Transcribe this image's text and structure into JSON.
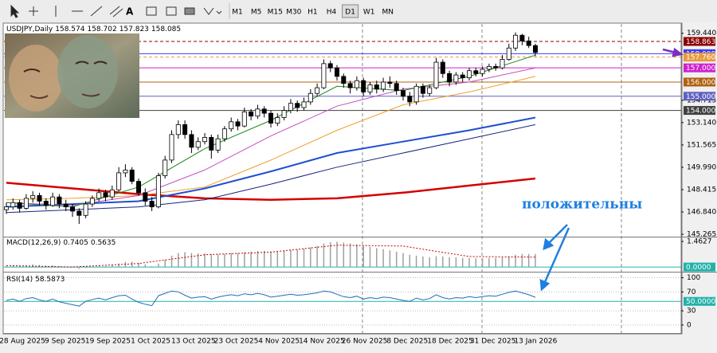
{
  "toolbar": {
    "timeframes": [
      "M1",
      "M5",
      "M15",
      "M30",
      "H1",
      "H4",
      "D1",
      "W1",
      "MN"
    ],
    "selected": 6
  },
  "chart_data": [
    {
      "type": "candlestick",
      "title": "USDJPY,Daily",
      "ohlc": [
        [
          147.0,
          147.5,
          146.7,
          147.2
        ],
        [
          147.2,
          147.8,
          147.0,
          147.5
        ],
        [
          147.5,
          147.7,
          146.8,
          147.1
        ],
        [
          147.1,
          148.1,
          147.0,
          147.8
        ],
        [
          147.8,
          148.3,
          147.5,
          148.0
        ],
        [
          148.0,
          148.2,
          147.3,
          147.6
        ],
        [
          147.6,
          147.8,
          147.0,
          147.3
        ],
        [
          147.3,
          148.2,
          147.2,
          147.9
        ],
        [
          147.9,
          148.1,
          147.1,
          147.4
        ],
        [
          147.4,
          147.7,
          146.9,
          147.2
        ],
        [
          147.2,
          147.4,
          146.5,
          146.9
        ],
        [
          146.9,
          147.1,
          146.0,
          146.6
        ],
        [
          146.6,
          147.6,
          146.4,
          147.4
        ],
        [
          147.4,
          148.0,
          147.2,
          147.8
        ],
        [
          147.8,
          148.5,
          147.6,
          148.2
        ],
        [
          148.2,
          148.4,
          147.6,
          147.9
        ],
        [
          147.9,
          148.7,
          147.7,
          148.4
        ],
        [
          148.4,
          150.0,
          148.3,
          149.6
        ],
        [
          149.6,
          150.2,
          149.3,
          149.8
        ],
        [
          149.8,
          150.0,
          148.8,
          149.0
        ],
        [
          149.0,
          149.2,
          148.0,
          148.2
        ],
        [
          148.2,
          148.5,
          147.3,
          147.6
        ],
        [
          147.6,
          147.9,
          146.9,
          147.2
        ],
        [
          147.2,
          149.6,
          147.1,
          149.4
        ],
        [
          149.4,
          150.8,
          149.2,
          150.5
        ],
        [
          150.5,
          152.6,
          150.3,
          152.3
        ],
        [
          152.3,
          153.3,
          152.0,
          153.0
        ],
        [
          153.0,
          153.3,
          152.0,
          152.3
        ],
        [
          152.3,
          152.6,
          151.0,
          151.4
        ],
        [
          151.4,
          152.1,
          151.2,
          151.8
        ],
        [
          151.8,
          152.4,
          151.6,
          152.1
        ],
        [
          152.1,
          152.3,
          150.6,
          151.2
        ],
        [
          151.2,
          152.3,
          151.0,
          152.0
        ],
        [
          152.0,
          152.9,
          151.8,
          152.7
        ],
        [
          152.7,
          153.5,
          152.5,
          153.2
        ],
        [
          153.2,
          153.4,
          152.6,
          152.9
        ],
        [
          152.9,
          154.2,
          152.8,
          153.9
        ],
        [
          153.9,
          154.1,
          153.3,
          153.6
        ],
        [
          153.6,
          154.4,
          153.4,
          154.1
        ],
        [
          154.1,
          154.3,
          153.5,
          153.8
        ],
        [
          153.8,
          154.0,
          152.8,
          153.1
        ],
        [
          153.1,
          153.8,
          152.9,
          153.5
        ],
        [
          153.5,
          154.3,
          153.3,
          154.0
        ],
        [
          154.0,
          154.8,
          153.8,
          154.5
        ],
        [
          154.5,
          154.7,
          153.9,
          154.2
        ],
        [
          154.2,
          154.9,
          154.0,
          154.6
        ],
        [
          154.6,
          155.5,
          154.4,
          155.2
        ],
        [
          155.2,
          155.9,
          155.0,
          155.6
        ],
        [
          155.6,
          157.6,
          155.5,
          157.3
        ],
        [
          157.3,
          157.5,
          156.7,
          157.0
        ],
        [
          157.0,
          157.2,
          156.1,
          156.4
        ],
        [
          156.4,
          156.6,
          155.6,
          155.9
        ],
        [
          155.9,
          156.1,
          155.2,
          155.6
        ],
        [
          155.6,
          156.4,
          155.4,
          156.1
        ],
        [
          156.1,
          156.3,
          155.0,
          155.3
        ],
        [
          155.3,
          156.0,
          155.1,
          155.8
        ],
        [
          155.8,
          156.1,
          155.2,
          155.5
        ],
        [
          155.5,
          156.3,
          155.3,
          156.0
        ],
        [
          156.0,
          156.4,
          155.6,
          155.9
        ],
        [
          155.9,
          156.1,
          155.1,
          155.4
        ],
        [
          155.4,
          155.6,
          154.7,
          155.0
        ],
        [
          155.0,
          155.3,
          154.3,
          154.6
        ],
        [
          154.6,
          155.9,
          154.4,
          155.7
        ],
        [
          155.7,
          155.9,
          154.9,
          155.2
        ],
        [
          155.2,
          155.8,
          155.0,
          155.6
        ],
        [
          155.6,
          157.7,
          155.5,
          157.4
        ],
        [
          157.4,
          157.6,
          156.3,
          156.6
        ],
        [
          156.6,
          156.8,
          155.7,
          156.0
        ],
        [
          156.0,
          156.7,
          155.8,
          156.5
        ],
        [
          156.5,
          156.7,
          156.0,
          156.3
        ],
        [
          156.3,
          157.0,
          156.1,
          156.8
        ],
        [
          156.8,
          157.0,
          156.4,
          156.6
        ],
        [
          156.6,
          157.1,
          156.4,
          156.9
        ],
        [
          156.9,
          157.3,
          156.7,
          157.1
        ],
        [
          157.1,
          157.3,
          156.8,
          157.0
        ],
        [
          157.0,
          157.9,
          156.9,
          157.6
        ],
        [
          157.6,
          158.7,
          157.5,
          158.4
        ],
        [
          158.4,
          159.5,
          158.2,
          159.3
        ],
        [
          159.3,
          159.4,
          158.6,
          158.9
        ],
        [
          158.9,
          159.2,
          158.4,
          158.574
        ],
        [
          158.574,
          158.702,
          157.823,
          158.085
        ]
      ],
      "lines": [
        {
          "color": "#d40000",
          "width": 2.5,
          "x": [
            0,
            10,
            20,
            30,
            40,
            50,
            60,
            70,
            80
          ],
          "values": [
            148.9,
            148.5,
            148.1,
            147.8,
            147.7,
            147.8,
            148.2,
            148.7,
            149.2
          ]
        },
        {
          "color": "#1f4fd1",
          "width": 2,
          "x": [
            0,
            10,
            20,
            30,
            40,
            50,
            60,
            70,
            80
          ],
          "values": [
            147.2,
            147.4,
            147.6,
            148.5,
            149.7,
            151.0,
            151.8,
            152.6,
            153.5
          ]
        },
        {
          "color": "#1a237e",
          "width": 1,
          "x": [
            0,
            10,
            20,
            30,
            40,
            50,
            60,
            70,
            80
          ],
          "values": [
            146.8,
            147.0,
            147.2,
            147.7,
            148.8,
            150.0,
            151.0,
            152.0,
            153.0
          ]
        },
        {
          "color": "#f0a030",
          "width": 1,
          "x": [
            0,
            10,
            20,
            30,
            40,
            50,
            60,
            70,
            80
          ],
          "values": [
            147.7,
            147.8,
            148.0,
            148.6,
            150.5,
            152.6,
            154.4,
            155.3,
            156.4
          ]
        },
        {
          "color": "#c050c0",
          "width": 1,
          "x": [
            0,
            10,
            20,
            30,
            40,
            50,
            60,
            70,
            80
          ],
          "values": [
            147.5,
            147.3,
            148.0,
            149.8,
            152.2,
            154.3,
            155.5,
            156.0,
            157.0
          ]
        },
        {
          "color": "#1a8a1a",
          "width": 1,
          "x": [
            0,
            10,
            20,
            30,
            40,
            50,
            60,
            70,
            80
          ],
          "values": [
            147.5,
            147.2,
            148.6,
            151.3,
            153.3,
            155.7,
            155.4,
            156.4,
            157.9
          ]
        }
      ],
      "levels": [
        {
          "value": 158.863,
          "color": "#8b0000",
          "dash": true
        },
        {
          "value": 158,
          "label": "158.000",
          "color": "#3b3bff"
        },
        {
          "value": 157.76,
          "label": "157.760",
          "color": "#e89a3c",
          "dash": true
        },
        {
          "value": 157,
          "label": "157.000",
          "color": "#d020d0"
        },
        {
          "value": 156,
          "label": "156.000",
          "color": "#b06010"
        },
        {
          "value": 155,
          "label": "155.000",
          "color": "#6060c0"
        },
        {
          "value": 154,
          "label": "154.000",
          "color": "#404040"
        }
      ],
      "ylim": [
        145.1,
        160.1
      ],
      "yticks": [
        {
          "value": 159.44,
          "label": "159.440"
        },
        154.715,
        {
          "value": 153.14,
          "label": "153.140"
        },
        151.565,
        {
          "value": 149.99,
          "label": "149.990"
        },
        148.415,
        {
          "value": 146.84,
          "label": "146.840"
        },
        145.265
      ],
      "date_labels": [
        "28 Aug 2025",
        "9 Sep 2025",
        "19 Sep 2025",
        "1 Oct 2025",
        "13 Oct 2025",
        "23 Oct 2025",
        "4 Nov 2025",
        "14 Nov 2025",
        "26 Nov 2025",
        "8 Dec 2025",
        "18 Dec 2025",
        "31 Dec 2025",
        "13 Jan 2026"
      ],
      "annotation": "положительны"
    },
    {
      "type": "macd",
      "title": "MACD(12,26,9)",
      "color": "#a0a0a0",
      "values": [
        0.05,
        0.08,
        0.05,
        0.1,
        0.15,
        0.12,
        0.08,
        0.1,
        0.05,
        0.02,
        -0.05,
        -0.1,
        -0.05,
        0,
        0.05,
        0.05,
        0.1,
        0.2,
        0.3,
        0.3,
        0.25,
        0.15,
        0.05,
        0.2,
        0.4,
        0.65,
        0.8,
        0.85,
        0.8,
        0.78,
        0.78,
        0.72,
        0.72,
        0.75,
        0.8,
        0.8,
        0.85,
        0.88,
        0.92,
        0.92,
        0.88,
        0.88,
        0.92,
        0.98,
        1.0,
        1.05,
        1.12,
        1.2,
        1.35,
        1.42,
        1.45,
        1.4,
        1.35,
        1.3,
        1.22,
        1.15,
        1.08,
        1.02,
        0.95,
        0.88,
        0.8,
        0.7,
        0.65,
        0.6,
        0.55,
        0.62,
        0.6,
        0.55,
        0.55,
        0.52,
        0.52,
        0.5,
        0.5,
        0.52,
        0.52,
        0.55,
        0.62,
        0.7,
        0.75,
        0.75,
        0.7405
      ],
      "signal": {
        "color": "#c00000",
        "x": [
          0,
          10,
          20,
          30,
          40,
          50,
          60,
          70,
          80
        ],
        "values": [
          0.08,
          0.0,
          0.2,
          0.7,
          0.85,
          1.25,
          1.2,
          0.6,
          0.5635
        ]
      },
      "level": {
        "value": 0,
        "label": "0.0000",
        "color": "#20b2aa"
      },
      "ylim": [
        -0.27,
        1.69
      ],
      "yticks": [
        1.4627
      ]
    },
    {
      "type": "rsi",
      "title": "RSI(14)",
      "color": "#1e6fb5",
      "values": [
        52,
        55,
        50,
        56,
        58,
        53,
        50,
        55,
        49,
        46,
        43,
        40,
        50,
        54,
        57,
        53,
        58,
        62,
        63,
        55,
        48,
        44,
        41,
        62,
        67,
        72,
        70,
        63,
        57,
        59,
        60,
        55,
        59,
        62,
        64,
        62,
        66,
        64,
        67,
        64,
        59,
        61,
        63,
        65,
        63,
        64,
        66,
        68,
        72,
        70,
        65,
        60,
        58,
        61,
        55,
        58,
        56,
        59,
        58,
        55,
        52,
        50,
        57,
        53,
        56,
        64,
        58,
        55,
        58,
        57,
        60,
        58,
        60,
        62,
        61,
        65,
        69,
        72,
        68,
        64,
        58.5873
      ],
      "level": {
        "value": 50,
        "label": "50.0000",
        "color": "#20b2aa"
      },
      "ylim": [
        -17,
        111
      ],
      "yticks": [
        100,
        70,
        30,
        0
      ],
      "grid": true
    }
  ]
}
